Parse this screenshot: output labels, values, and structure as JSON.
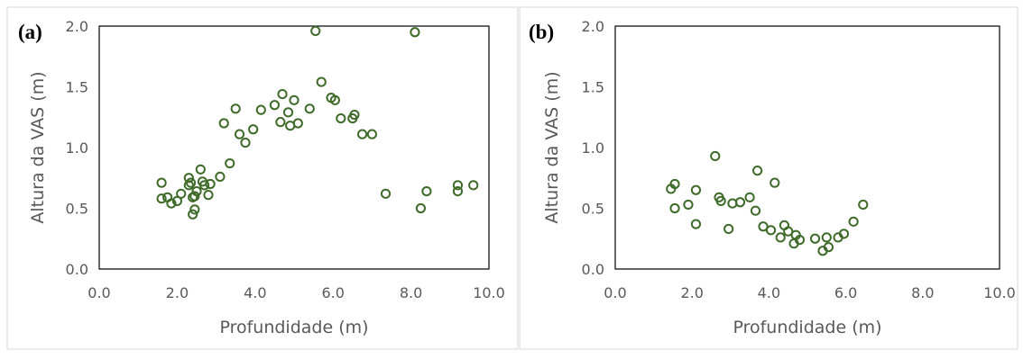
{
  "colors": {
    "marker": "#3f6b2a",
    "text": "#595959",
    "border": "#000000",
    "frame": "#d9d9d9"
  },
  "chart_data": [
    {
      "type": "scatter",
      "panel_label": "(a)",
      "xlabel": "Profundidade (m)",
      "ylabel": "Altura da VAS (m)",
      "xlim": [
        0,
        10
      ],
      "ylim": [
        0,
        2
      ],
      "x_ticks": [
        "0.0",
        "2.0",
        "4.0",
        "6.0",
        "8.0",
        "10.0"
      ],
      "y_ticks": [
        "0.0",
        "0.5",
        "1.0",
        "1.5",
        "2.0"
      ],
      "grid": false,
      "points": [
        [
          1.6,
          0.71
        ],
        [
          1.6,
          0.58
        ],
        [
          1.75,
          0.59
        ],
        [
          1.85,
          0.54
        ],
        [
          2.0,
          0.56
        ],
        [
          2.1,
          0.62
        ],
        [
          2.3,
          0.75
        ],
        [
          2.3,
          0.69
        ],
        [
          2.35,
          0.71
        ],
        [
          2.4,
          0.59
        ],
        [
          2.45,
          0.6
        ],
        [
          2.4,
          0.45
        ],
        [
          2.45,
          0.49
        ],
        [
          2.5,
          0.64
        ],
        [
          2.6,
          0.82
        ],
        [
          2.65,
          0.72
        ],
        [
          2.7,
          0.69
        ],
        [
          2.8,
          0.61
        ],
        [
          2.85,
          0.7
        ],
        [
          3.1,
          0.76
        ],
        [
          3.2,
          1.2
        ],
        [
          3.35,
          0.87
        ],
        [
          3.5,
          1.32
        ],
        [
          3.6,
          1.11
        ],
        [
          3.75,
          1.04
        ],
        [
          3.95,
          1.15
        ],
        [
          4.15,
          1.31
        ],
        [
          4.5,
          1.35
        ],
        [
          4.65,
          1.21
        ],
        [
          4.7,
          1.44
        ],
        [
          4.85,
          1.29
        ],
        [
          4.9,
          1.18
        ],
        [
          5.0,
          1.39
        ],
        [
          5.1,
          1.2
        ],
        [
          5.4,
          1.32
        ],
        [
          5.55,
          1.96
        ],
        [
          5.7,
          1.54
        ],
        [
          5.95,
          1.41
        ],
        [
          6.05,
          1.39
        ],
        [
          6.2,
          1.24
        ],
        [
          6.5,
          1.24
        ],
        [
          6.55,
          1.27
        ],
        [
          6.75,
          1.11
        ],
        [
          7.0,
          1.11
        ],
        [
          7.35,
          0.62
        ],
        [
          8.1,
          1.95
        ],
        [
          8.25,
          0.5
        ],
        [
          8.4,
          0.64
        ],
        [
          9.2,
          0.69
        ],
        [
          9.2,
          0.64
        ],
        [
          9.6,
          0.69
        ]
      ]
    },
    {
      "type": "scatter",
      "panel_label": "(b)",
      "xlabel": "Profundidade (m)",
      "ylabel": "Altura da VAS (m)",
      "xlim": [
        0,
        10
      ],
      "ylim": [
        0,
        2
      ],
      "x_ticks": [
        "0.0",
        "2.0",
        "4.0",
        "6.0",
        "8.0",
        "10.0"
      ],
      "y_ticks": [
        "0.0",
        "0.5",
        "1.0",
        "1.5",
        "2.0"
      ],
      "grid": false,
      "points": [
        [
          1.45,
          0.66
        ],
        [
          1.55,
          0.7
        ],
        [
          1.55,
          0.5
        ],
        [
          1.9,
          0.53
        ],
        [
          2.1,
          0.65
        ],
        [
          2.1,
          0.37
        ],
        [
          2.6,
          0.93
        ],
        [
          2.7,
          0.59
        ],
        [
          2.75,
          0.56
        ],
        [
          2.95,
          0.33
        ],
        [
          3.05,
          0.54
        ],
        [
          3.25,
          0.55
        ],
        [
          3.5,
          0.59
        ],
        [
          3.65,
          0.48
        ],
        [
          3.7,
          0.81
        ],
        [
          3.85,
          0.35
        ],
        [
          4.05,
          0.32
        ],
        [
          4.15,
          0.71
        ],
        [
          4.3,
          0.26
        ],
        [
          4.4,
          0.36
        ],
        [
          4.5,
          0.31
        ],
        [
          4.65,
          0.21
        ],
        [
          4.7,
          0.28
        ],
        [
          4.8,
          0.24
        ],
        [
          5.2,
          0.25
        ],
        [
          5.4,
          0.15
        ],
        [
          5.5,
          0.26
        ],
        [
          5.55,
          0.18
        ],
        [
          5.8,
          0.26
        ],
        [
          5.95,
          0.29
        ],
        [
          6.2,
          0.39
        ],
        [
          6.45,
          0.53
        ]
      ]
    }
  ]
}
